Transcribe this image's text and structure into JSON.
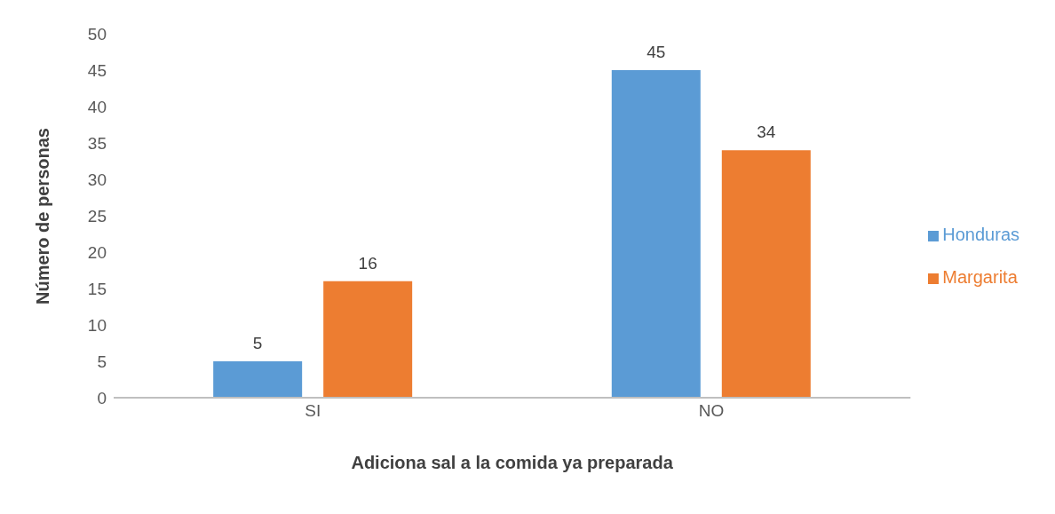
{
  "chart_data": {
    "type": "bar",
    "xlabel": "Adiciona sal a la comida ya preparada",
    "ylabel": "Número de personas",
    "categories": [
      "SI",
      "NO"
    ],
    "series": [
      {
        "name": "Honduras",
        "color": "#5b9bd5",
        "values": [
          5,
          45
        ]
      },
      {
        "name": "Margarita",
        "color": "#ed7d31",
        "values": [
          16,
          34
        ]
      }
    ],
    "ylim": [
      0,
      50
    ],
    "yticks": [
      0,
      5,
      10,
      15,
      20,
      25,
      30,
      35,
      40,
      45,
      50
    ],
    "grid": false,
    "legend": "right",
    "data_labels": true
  }
}
